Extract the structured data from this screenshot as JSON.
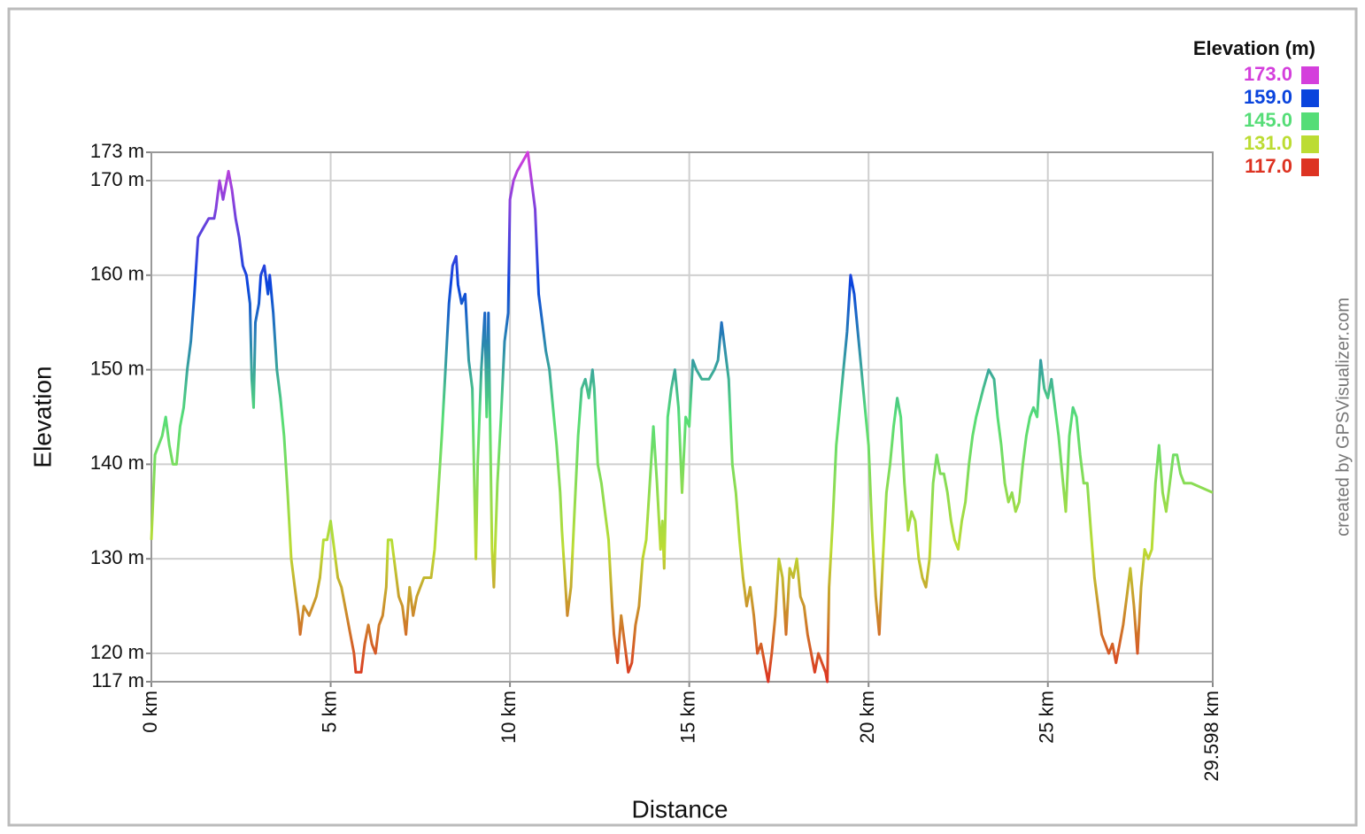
{
  "chart_data": {
    "type": "line",
    "xlabel": "Distance",
    "ylabel": "Elevation",
    "credit": "created by GPSVisualizer.com",
    "legend_title": "Elevation (m)",
    "color_scale": [
      {
        "value": 173,
        "label": "173.0",
        "color": "#d43fdc"
      },
      {
        "value": 159,
        "label": "159.0",
        "color": "#0a44dd"
      },
      {
        "value": 145,
        "label": "145.0",
        "color": "#55dd77"
      },
      {
        "value": 131,
        "label": "131.0",
        "color": "#bcdc33"
      },
      {
        "value": 117,
        "label": "117.0",
        "color": "#dd3322"
      }
    ],
    "xlim": [
      0,
      29.598
    ],
    "ylim": [
      117,
      173
    ],
    "xticks": [
      {
        "value": 0,
        "label": "0 km"
      },
      {
        "value": 5,
        "label": "5 km"
      },
      {
        "value": 10,
        "label": "10 km"
      },
      {
        "value": 15,
        "label": "15 km"
      },
      {
        "value": 20,
        "label": "20 km"
      },
      {
        "value": 25,
        "label": "25 km"
      },
      {
        "value": 29.598,
        "label": "29.598 km"
      }
    ],
    "yticks": [
      {
        "value": 117,
        "label": "117 m"
      },
      {
        "value": 120,
        "label": "120 m"
      },
      {
        "value": 130,
        "label": "130 m"
      },
      {
        "value": 140,
        "label": "140 m"
      },
      {
        "value": 150,
        "label": "150 m"
      },
      {
        "value": 160,
        "label": "160 m"
      },
      {
        "value": 170,
        "label": "170 m"
      },
      {
        "value": 173,
        "label": "173 m"
      }
    ],
    "grid": true,
    "legend": "top-right",
    "x": [
      0,
      0.1,
      0.3,
      0.4,
      0.5,
      0.6,
      0.7,
      0.8,
      0.9,
      1.0,
      1.1,
      1.2,
      1.3,
      1.45,
      1.6,
      1.75,
      1.8,
      1.9,
      2.0,
      2.1,
      2.15,
      2.25,
      2.35,
      2.45,
      2.55,
      2.65,
      2.75,
      2.8,
      2.85,
      2.9,
      3.0,
      3.05,
      3.15,
      3.25,
      3.3,
      3.4,
      3.5,
      3.6,
      3.7,
      3.8,
      3.9,
      4.0,
      4.1,
      4.15,
      4.25,
      4.4,
      4.5,
      4.6,
      4.7,
      4.8,
      4.9,
      5.0,
      5.1,
      5.2,
      5.3,
      5.45,
      5.55,
      5.65,
      5.7,
      5.85,
      5.95,
      6.05,
      6.15,
      6.25,
      6.35,
      6.45,
      6.55,
      6.6,
      6.7,
      6.8,
      6.9,
      7.0,
      7.1,
      7.2,
      7.3,
      7.4,
      7.5,
      7.6,
      7.7,
      7.8,
      7.9,
      8.0,
      8.1,
      8.2,
      8.3,
      8.4,
      8.5,
      8.55,
      8.65,
      8.75,
      8.85,
      8.95,
      9.05,
      9.1,
      9.2,
      9.3,
      9.35,
      9.4,
      9.5,
      9.55,
      9.65,
      9.75,
      9.85,
      9.95,
      10.0,
      10.1,
      10.2,
      10.35,
      10.5,
      10.6,
      10.7,
      10.8,
      10.9,
      11.0,
      11.1,
      11.2,
      11.3,
      11.4,
      11.45,
      11.55,
      11.6,
      11.7,
      11.8,
      11.9,
      12.0,
      12.1,
      12.2,
      12.3,
      12.35,
      12.45,
      12.55,
      12.65,
      12.75,
      12.85,
      12.9,
      13.0,
      13.1,
      13.2,
      13.3,
      13.4,
      13.5,
      13.6,
      13.7,
      13.8,
      13.9,
      14.0,
      14.1,
      14.2,
      14.25,
      14.3,
      14.4,
      14.5,
      14.6,
      14.7,
      14.8,
      14.9,
      15.0,
      15.1,
      15.2,
      15.35,
      15.55,
      15.7,
      15.8,
      15.9,
      16.0,
      16.1,
      16.2,
      16.3,
      16.4,
      16.5,
      16.6,
      16.7,
      16.8,
      16.9,
      17.0,
      17.1,
      17.2,
      17.3,
      17.4,
      17.5,
      17.6,
      17.7,
      17.8,
      17.9,
      18.0,
      18.1,
      18.2,
      18.3,
      18.4,
      18.5,
      18.6,
      18.7,
      18.8,
      18.85,
      18.9,
      19.0,
      19.1,
      19.2,
      19.3,
      19.4,
      19.5,
      19.6,
      19.75,
      19.8,
      19.9,
      20.0,
      20.1,
      20.2,
      20.3,
      20.4,
      20.5,
      20.6,
      20.7,
      20.8,
      20.9,
      21.0,
      21.1,
      21.2,
      21.3,
      21.4,
      21.5,
      21.6,
      21.7,
      21.8,
      21.9,
      22.0,
      22.1,
      22.2,
      22.3,
      22.4,
      22.5,
      22.6,
      22.7,
      22.8,
      22.9,
      23.0,
      23.2,
      23.35,
      23.5,
      23.6,
      23.7,
      23.8,
      23.9,
      24.0,
      24.1,
      24.2,
      24.3,
      24.4,
      24.5,
      24.6,
      24.7,
      24.8,
      24.9,
      25.0,
      25.1,
      25.2,
      25.3,
      25.4,
      25.5,
      25.6,
      25.7,
      25.8,
      25.9,
      26.0,
      26.1,
      26.2,
      26.3,
      26.4,
      26.5,
      26.6,
      26.7,
      26.8,
      26.9,
      27.0,
      27.1,
      27.2,
      27.3,
      27.4,
      27.5,
      27.6,
      27.7,
      27.8,
      27.9,
      28.0,
      28.1,
      28.2,
      28.3,
      28.4,
      28.5,
      28.6,
      28.7,
      28.8,
      29.0,
      29.598
    ],
    "values": [
      132,
      141,
      143,
      145,
      142,
      140,
      140,
      144,
      146,
      150,
      153,
      158,
      164,
      165,
      166,
      166,
      167,
      170,
      168,
      170,
      171,
      169,
      166,
      164,
      161,
      160,
      157,
      149,
      146,
      155,
      157,
      160,
      161,
      158,
      160,
      156,
      150,
      147,
      143,
      137,
      130,
      127,
      124,
      122,
      125,
      124,
      125,
      126,
      128,
      132,
      132,
      134,
      131,
      128,
      127,
      124,
      122,
      120,
      118,
      118,
      121,
      123,
      121,
      120,
      123,
      124,
      127,
      132,
      132,
      129,
      126,
      125,
      122,
      127,
      124,
      126,
      127,
      128,
      128,
      128,
      131,
      137,
      143,
      150,
      157,
      161,
      162,
      159,
      157,
      158,
      151,
      148,
      130,
      140,
      150,
      156,
      145,
      156,
      131,
      127,
      138,
      145,
      153,
      156,
      168,
      170,
      171,
      172,
      173,
      170,
      167,
      158,
      155,
      152,
      150,
      146,
      142,
      137,
      133,
      127,
      124,
      127,
      135,
      143,
      148,
      149,
      147,
      150,
      148,
      140,
      138,
      135,
      132,
      125,
      122,
      119,
      124,
      121,
      118,
      119,
      123,
      125,
      130,
      132,
      138,
      144,
      138,
      131,
      134,
      129,
      145,
      148,
      150,
      146,
      137,
      145,
      144,
      151,
      150,
      149,
      149,
      150,
      151,
      155,
      152,
      149,
      140,
      137,
      132,
      128,
      125,
      127,
      124,
      120,
      121,
      119,
      117,
      120,
      124,
      130,
      128,
      122,
      129,
      128,
      130,
      126,
      125,
      122,
      120,
      118,
      120,
      119,
      118,
      117,
      127,
      134,
      142,
      146,
      150,
      154,
      160,
      158,
      152,
      150,
      146,
      142,
      133,
      126,
      122,
      130,
      137,
      140,
      144,
      147,
      145,
      138,
      133,
      135,
      134,
      130,
      128,
      127,
      130,
      138,
      141,
      139,
      139,
      137,
      134,
      132,
      131,
      134,
      136,
      140,
      143,
      145,
      148,
      150,
      149,
      145,
      142,
      138,
      136,
      137,
      135,
      136,
      140,
      143,
      145,
      146,
      145,
      151,
      148,
      147,
      149,
      146,
      143,
      139,
      135,
      143,
      146,
      145,
      141,
      138,
      138,
      133,
      128,
      125,
      122,
      121,
      120,
      121,
      119,
      121,
      123,
      126,
      129,
      125,
      120,
      127,
      131,
      130,
      131,
      138,
      142,
      137,
      135,
      138,
      141,
      141,
      139,
      138,
      138,
      137
    ]
  }
}
